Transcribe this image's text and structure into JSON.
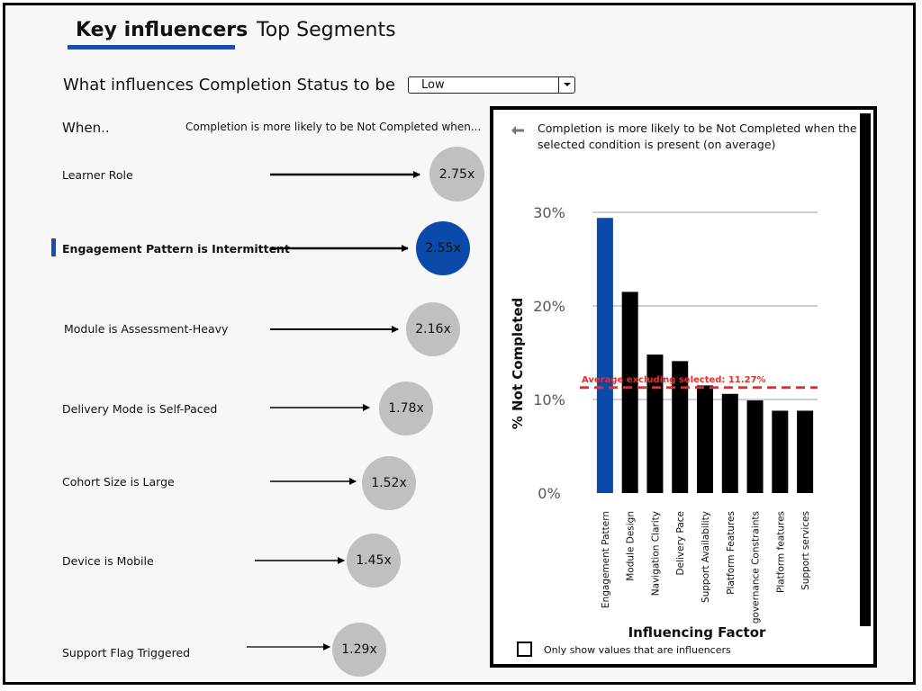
{
  "tabs": [
    {
      "label": "Key influencers",
      "active": true
    },
    {
      "label": "Top Segments",
      "active": false
    }
  ],
  "question": {
    "text": "What influences Completion Status to be",
    "selected_value": "Low"
  },
  "left": {
    "when_label": "When..",
    "likely_header": "Completion is more likely to be Not Completed when..."
  },
  "influencers": [
    {
      "label": "Learner Role",
      "multiplier": "2.75x",
      "selected": false
    },
    {
      "label": "Engagement Pattern is Intermittent",
      "multiplier": "2.55x",
      "selected": true
    },
    {
      "label": "Module is Assessment-Heavy",
      "multiplier": "2.16x",
      "selected": false
    },
    {
      "label": "Delivery Mode is Self-Paced",
      "multiplier": "1.78x",
      "selected": false
    },
    {
      "label": "Cohort Size is Large",
      "multiplier": "1.52x",
      "selected": false
    },
    {
      "label": "Device is Mobile",
      "multiplier": "1.45x",
      "selected": false
    },
    {
      "label": "Support Flag Triggered",
      "multiplier": "1.29x",
      "selected": false
    }
  ],
  "panel": {
    "title": "Completion is more likely to be Not Completed when the selected condition is present (on average)",
    "checkbox_label": "Only show values that are influencers"
  },
  "colors": {
    "accent": "#0b4aa8",
    "bubble": "#c0c0c0",
    "bar": "#000000",
    "average_line": "#e03030"
  },
  "chart_data": {
    "type": "bar",
    "categories": [
      "Engagement Pattern",
      "Module Design",
      "Navigation Clarity",
      "Delivery Pace",
      "Support Availability",
      "Platform Features",
      "governance Constraints",
      "Platform features",
      "Support services"
    ],
    "values": [
      29.4,
      21.5,
      14.8,
      14.1,
      11.5,
      10.6,
      9.9,
      8.8,
      8.8
    ],
    "highlight_index": 0,
    "xlabel": "Influencing Factor",
    "ylabel": "% Not Completed",
    "ylim": [
      0,
      30
    ],
    "yticks": [
      "0%",
      "10%",
      "20%",
      "30%"
    ],
    "reference_line": {
      "value": 11.27,
      "label": "Average excluding selected: 11.27%"
    },
    "grid": true
  }
}
